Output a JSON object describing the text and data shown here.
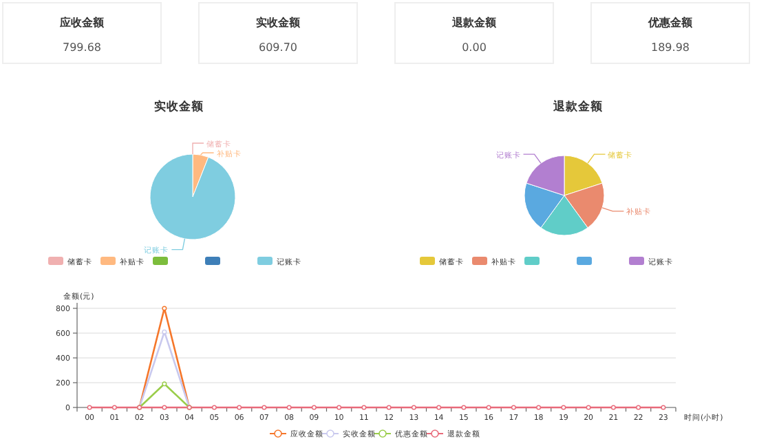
{
  "chart_data": [
    {
      "type": "other",
      "categories": [
        "应收金额",
        "实收金额",
        "退款金额",
        "优惠金额"
      ],
      "value_labels": [
        "799.68",
        "609.70",
        "0.00",
        "189.98"
      ]
    },
    {
      "type": "pie",
      "title": "实收金额",
      "categories": [
        "储蓄卡",
        "补贴卡",
        null,
        null,
        "记账卡"
      ],
      "values": [
        0,
        6,
        0,
        0,
        94
      ],
      "colors": [
        "#f0b0b0",
        "#ffb980",
        "#7cbd3c",
        "#3e7fb8",
        "#7fcde0"
      ],
      "legend": "bottom"
    },
    {
      "type": "pie",
      "title": "退款金额",
      "categories": [
        "储蓄卡",
        "补贴卡",
        null,
        null,
        "记账卡"
      ],
      "values": [
        20,
        20,
        20,
        20,
        20
      ],
      "colors": [
        "#e5c83a",
        "#ea8a6e",
        "#60cdc8",
        "#5aa9e0",
        "#b27fd0"
      ],
      "legend": "bottom"
    },
    {
      "type": "line",
      "categories": [
        "00",
        "01",
        "02",
        "03",
        "04",
        "05",
        "06",
        "07",
        "08",
        "09",
        "10",
        "11",
        "12",
        "13",
        "14",
        "15",
        "16",
        "17",
        "18",
        "19",
        "20",
        "21",
        "22",
        "23"
      ],
      "ylabel": "金额(元)",
      "xlabel": "时间(小时)",
      "ylim": [
        0,
        800
      ],
      "yticks": [
        0,
        200,
        400,
        600,
        800
      ],
      "grid": "y",
      "legend": "bottom",
      "marker": "circle",
      "series": [
        {
          "name": "应收金额",
          "color": "#f5762a",
          "values": [
            null,
            null,
            0,
            800,
            0,
            null,
            null,
            null,
            null,
            null,
            null,
            null,
            null,
            null,
            null,
            null,
            null,
            null,
            null,
            null,
            null,
            null,
            null,
            null
          ]
        },
        {
          "name": "实收金额",
          "color": "#c9c9ee",
          "values": [
            null,
            null,
            0,
            610,
            0,
            null,
            null,
            null,
            null,
            null,
            null,
            null,
            null,
            null,
            null,
            null,
            null,
            null,
            null,
            null,
            null,
            null,
            null,
            null
          ]
        },
        {
          "name": "优惠金额",
          "color": "#9acd4a",
          "values": [
            null,
            null,
            0,
            190,
            0,
            null,
            null,
            null,
            null,
            null,
            null,
            null,
            null,
            null,
            null,
            null,
            null,
            null,
            null,
            null,
            null,
            null,
            null,
            null
          ]
        },
        {
          "name": "退款金额",
          "color": "#e86a7a",
          "values": [
            0,
            0,
            0,
            0,
            0,
            0,
            0,
            0,
            0,
            0,
            0,
            0,
            0,
            0,
            0,
            0,
            0,
            0,
            0,
            0,
            0,
            0,
            0,
            0
          ]
        }
      ]
    }
  ]
}
